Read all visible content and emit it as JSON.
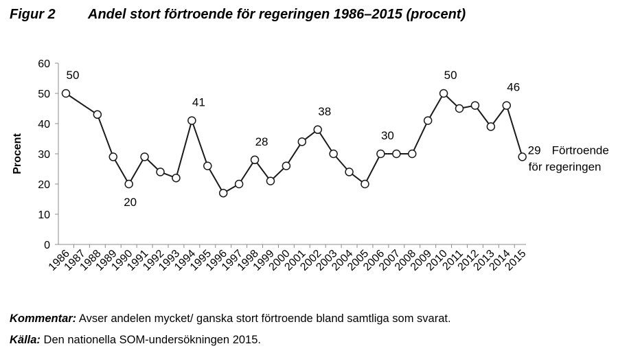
{
  "figure": {
    "label": "Figur 2",
    "title": "Andel stort förtroende för regeringen 1986–2015 (procent)"
  },
  "notes": {
    "comment_label": "Kommentar:",
    "comment_text": " Avser andelen mycket/ ganska stort förtroende bland samtliga som svarat.",
    "source_label": "Källa:",
    "source_text": " Den nationella SOM-undersökningen 2015."
  },
  "chart_data": {
    "type": "line",
    "ylabel": "Procent",
    "ylim": [
      0,
      60
    ],
    "yticks": [
      0,
      10,
      20,
      30,
      40,
      50,
      60
    ],
    "grid": false,
    "x": [
      "1986",
      "1987",
      "1988",
      "1989",
      "1990",
      "1991",
      "1992",
      "1993",
      "1994",
      "1995",
      "1996",
      "1997",
      "1998",
      "1999",
      "2000",
      "2001",
      "2002",
      "2003",
      "2004",
      "2005",
      "2006",
      "2007",
      "2008",
      "2009",
      "2010",
      "2011",
      "2012",
      "2013",
      "2014",
      "2015"
    ],
    "series": [
      {
        "name": "Förtroende för regeringen",
        "name_lines": [
          "Förtroende",
          "för regeringen"
        ],
        "points": [
          {
            "x": "1986",
            "y": 50
          },
          {
            "x": "1988",
            "y": 43
          },
          {
            "x": "1989",
            "y": 29
          },
          {
            "x": "1990",
            "y": 20
          },
          {
            "x": "1991",
            "y": 29
          },
          {
            "x": "1992",
            "y": 24
          },
          {
            "x": "1993",
            "y": 22
          },
          {
            "x": "1994",
            "y": 41
          },
          {
            "x": "1995",
            "y": 26
          },
          {
            "x": "1996",
            "y": 17
          },
          {
            "x": "1997",
            "y": 20
          },
          {
            "x": "1998",
            "y": 28
          },
          {
            "x": "1999",
            "y": 21
          },
          {
            "x": "2000",
            "y": 26
          },
          {
            "x": "2001",
            "y": 34
          },
          {
            "x": "2002",
            "y": 38
          },
          {
            "x": "2003",
            "y": 30
          },
          {
            "x": "2004",
            "y": 24
          },
          {
            "x": "2005",
            "y": 20
          },
          {
            "x": "2006",
            "y": 30
          },
          {
            "x": "2007",
            "y": 30
          },
          {
            "x": "2008",
            "y": 30
          },
          {
            "x": "2009",
            "y": 41
          },
          {
            "x": "2010",
            "y": 50
          },
          {
            "x": "2011",
            "y": 45
          },
          {
            "x": "2012",
            "y": 46
          },
          {
            "x": "2013",
            "y": 39
          },
          {
            "x": "2014",
            "y": 46
          },
          {
            "x": "2015",
            "y": 29
          }
        ]
      }
    ],
    "data_labels": [
      {
        "x": "1986",
        "text": "50",
        "position": "above"
      },
      {
        "x": "1990",
        "text": "20",
        "position": "below"
      },
      {
        "x": "1994",
        "text": "41",
        "position": "above"
      },
      {
        "x": "1998",
        "text": "28",
        "position": "above"
      },
      {
        "x": "2002",
        "text": "38",
        "position": "above"
      },
      {
        "x": "2006",
        "text": "30",
        "position": "above"
      },
      {
        "x": "2010",
        "text": "50",
        "position": "above"
      },
      {
        "x": "2014",
        "text": "46",
        "position": "above"
      },
      {
        "x": "2015",
        "text": "29",
        "position": "right"
      }
    ],
    "colors": {
      "line": "#1a1a1a",
      "marker_fill": "#ffffff",
      "axis": "#8c8c8c"
    }
  }
}
